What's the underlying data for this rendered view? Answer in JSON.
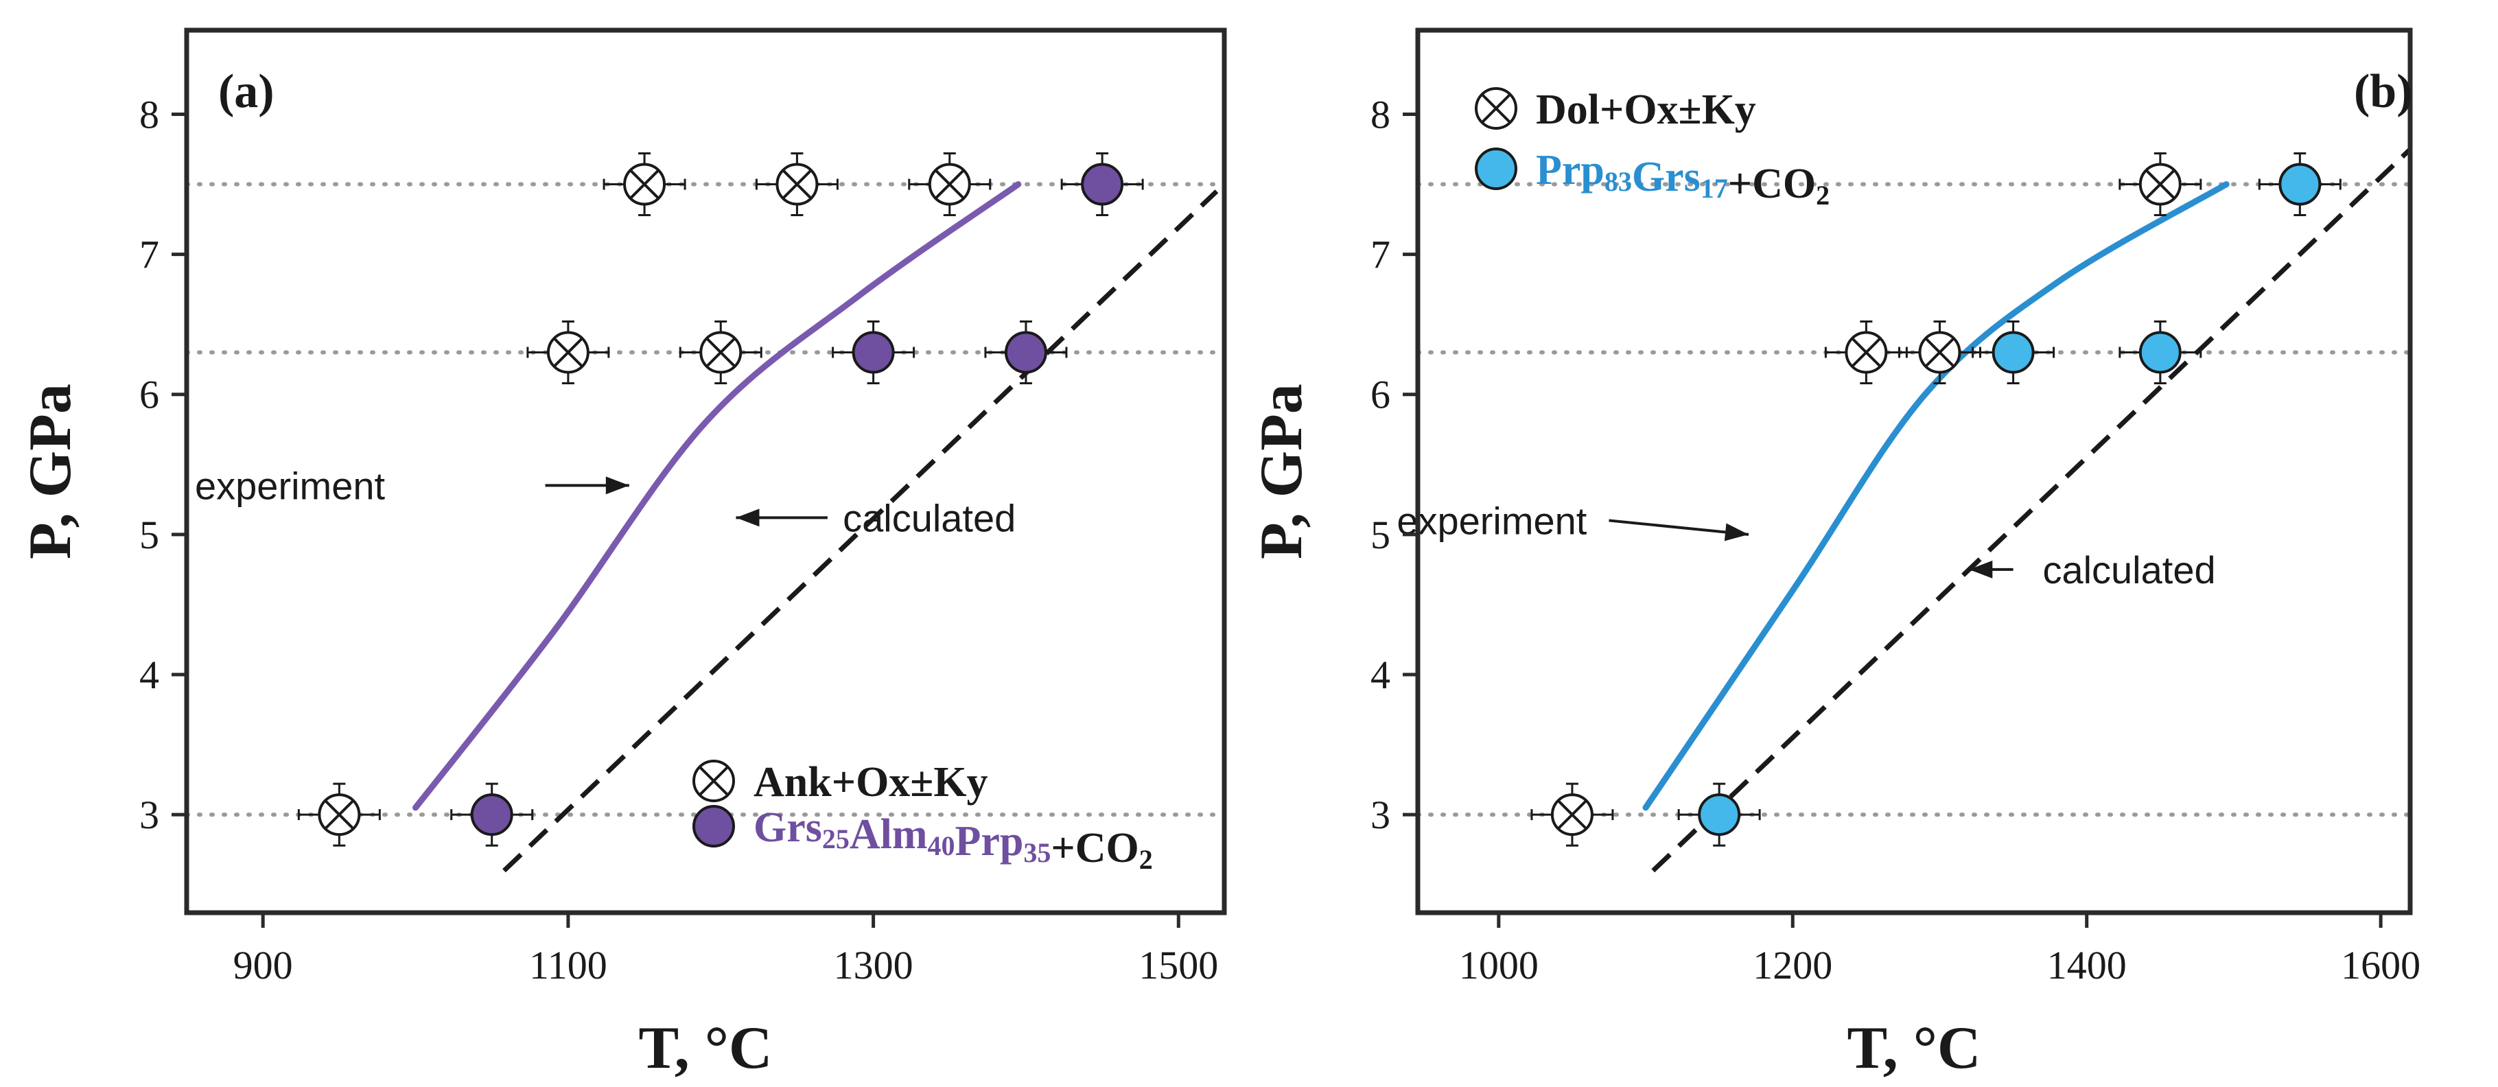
{
  "chart_data": [
    {
      "type": "scatter",
      "panel_label": "(a)",
      "xlabel": "T, °C",
      "ylabel": "P, GPa",
      "xlim": [
        850,
        1530
      ],
      "ylim": [
        2.3,
        8.6
      ],
      "x_ticks": [
        900,
        1100,
        1300,
        1500
      ],
      "y_ticks": [
        3,
        4,
        5,
        6,
        7,
        8
      ],
      "x_tick_labels": [
        "900",
        "1100",
        "1300",
        "1500"
      ],
      "y_tick_labels": [
        "3",
        "4",
        "5",
        "6",
        "7",
        "8"
      ],
      "reference_pressures": [
        3.0,
        6.3,
        7.5
      ],
      "colors": {
        "accent": "#6f4fa0",
        "line": "#7a5aae",
        "calc": "#1a1a1a",
        "ref": "#9a9a9a"
      },
      "legend_position": "bottom-right",
      "legend": [
        {
          "marker": "crossed-circle",
          "parts": [
            {
              "text": "Ank+Ox±Ky",
              "color": "#1a1a1a"
            }
          ]
        },
        {
          "marker": "filled-circle",
          "parts": [
            {
              "text": "Grs",
              "color": "#6f4fa0"
            },
            {
              "text": "25",
              "color": "#6f4fa0",
              "sub": true
            },
            {
              "text": "Alm",
              "color": "#6f4fa0"
            },
            {
              "text": "40",
              "color": "#6f4fa0",
              "sub": true
            },
            {
              "text": "Prp",
              "color": "#6f4fa0"
            },
            {
              "text": "35",
              "color": "#6f4fa0",
              "sub": true
            },
            {
              "text": "+CO",
              "color": "#1a1a1a"
            },
            {
              "text": "2",
              "color": "#1a1a1a",
              "sub": true
            }
          ]
        }
      ],
      "series": [
        {
          "marker": "crossed",
          "points": [
            {
              "x": 950,
              "y": 3.0
            },
            {
              "x": 1100,
              "y": 6.3
            },
            {
              "x": 1200,
              "y": 6.3
            },
            {
              "x": 1150,
              "y": 7.5
            },
            {
              "x": 1250,
              "y": 7.5
            },
            {
              "x": 1350,
              "y": 7.5
            }
          ]
        },
        {
          "marker": "filled",
          "points": [
            {
              "x": 1050,
              "y": 3.0
            },
            {
              "x": 1300,
              "y": 6.3
            },
            {
              "x": 1400,
              "y": 6.3
            },
            {
              "x": 1450,
              "y": 7.5
            }
          ]
        }
      ],
      "experiment_line": [
        {
          "x": 1000,
          "y": 3.05
        },
        {
          "x": 1090,
          "y": 4.3
        },
        {
          "x": 1190,
          "y": 5.8
        },
        {
          "x": 1290,
          "y": 6.7
        },
        {
          "x": 1395,
          "y": 7.5
        }
      ],
      "calculated_line": [
        {
          "x": 1058,
          "y": 2.6
        },
        {
          "x": 1525,
          "y": 7.45
        }
      ],
      "annotations": [
        {
          "text": "experiment",
          "x": 980,
          "y": 5.35,
          "arrow": [
            {
              "x": 1085,
              "y": 5.35
            },
            {
              "x": 1140,
              "y": 5.35
            }
          ]
        },
        {
          "text": "calculated",
          "x": 1280,
          "y": 5.12,
          "arrow": [
            {
              "x": 1270,
              "y": 5.12
            },
            {
              "x": 1210,
              "y": 5.12
            }
          ]
        }
      ]
    },
    {
      "type": "scatter",
      "panel_label": "(b)",
      "xlabel": "T, °C",
      "ylabel": "P, GPa",
      "xlim": [
        945,
        1620
      ],
      "ylim": [
        2.3,
        8.6
      ],
      "x_ticks": [
        1000,
        1200,
        1400,
        1600
      ],
      "y_ticks": [
        3,
        4,
        5,
        6,
        7,
        8
      ],
      "x_tick_labels": [
        "1000",
        "1200",
        "1400",
        "1600"
      ],
      "y_tick_labels": [
        "3",
        "4",
        "5",
        "6",
        "7",
        "8"
      ],
      "reference_pressures": [
        3.0,
        6.3,
        7.5
      ],
      "colors": {
        "accent": "#44b8ea",
        "label": "#2a8fd0",
        "line": "#2a8fd0",
        "calc": "#1a1a1a",
        "ref": "#9a9a9a"
      },
      "legend_position": "top-left",
      "legend": [
        {
          "marker": "crossed-circle",
          "parts": [
            {
              "text": "Dol+Ox±Ky",
              "color": "#1a1a1a"
            }
          ]
        },
        {
          "marker": "filled-circle",
          "parts": [
            {
              "text": "Prp",
              "color": "#2a8fd0"
            },
            {
              "text": "83",
              "color": "#2a8fd0",
              "sub": true
            },
            {
              "text": "Grs",
              "color": "#2a8fd0"
            },
            {
              "text": "17",
              "color": "#2a8fd0",
              "sub": true
            },
            {
              "text": "+CO",
              "color": "#1a1a1a"
            },
            {
              "text": "2",
              "color": "#1a1a1a",
              "sub": true
            }
          ]
        }
      ],
      "series": [
        {
          "marker": "crossed",
          "points": [
            {
              "x": 1050,
              "y": 3.0
            },
            {
              "x": 1250,
              "y": 6.3
            },
            {
              "x": 1300,
              "y": 6.3
            },
            {
              "x": 1450,
              "y": 7.5
            }
          ]
        },
        {
          "marker": "filled",
          "points": [
            {
              "x": 1150,
              "y": 3.0
            },
            {
              "x": 1350,
              "y": 6.3
            },
            {
              "x": 1450,
              "y": 6.3
            },
            {
              "x": 1545,
              "y": 7.5
            }
          ]
        }
      ],
      "experiment_line": [
        {
          "x": 1100,
          "y": 3.05
        },
        {
          "x": 1200,
          "y": 4.6
        },
        {
          "x": 1290,
          "y": 6.0
        },
        {
          "x": 1380,
          "y": 6.8
        },
        {
          "x": 1495,
          "y": 7.5
        }
      ],
      "calculated_line": [
        {
          "x": 1105,
          "y": 2.6
        },
        {
          "x": 1620,
          "y": 7.75
        }
      ],
      "annotations": [
        {
          "text": "experiment",
          "x": 1060,
          "y": 5.1,
          "arrow": [
            {
              "x": 1075,
              "y": 5.1
            },
            {
              "x": 1170,
              "y": 5.0
            }
          ]
        },
        {
          "text": "calculated",
          "x": 1370,
          "y": 4.75,
          "arrow": [
            {
              "x": 1350,
              "y": 4.75
            },
            {
              "x": 1320,
              "y": 4.75
            }
          ]
        }
      ]
    }
  ]
}
